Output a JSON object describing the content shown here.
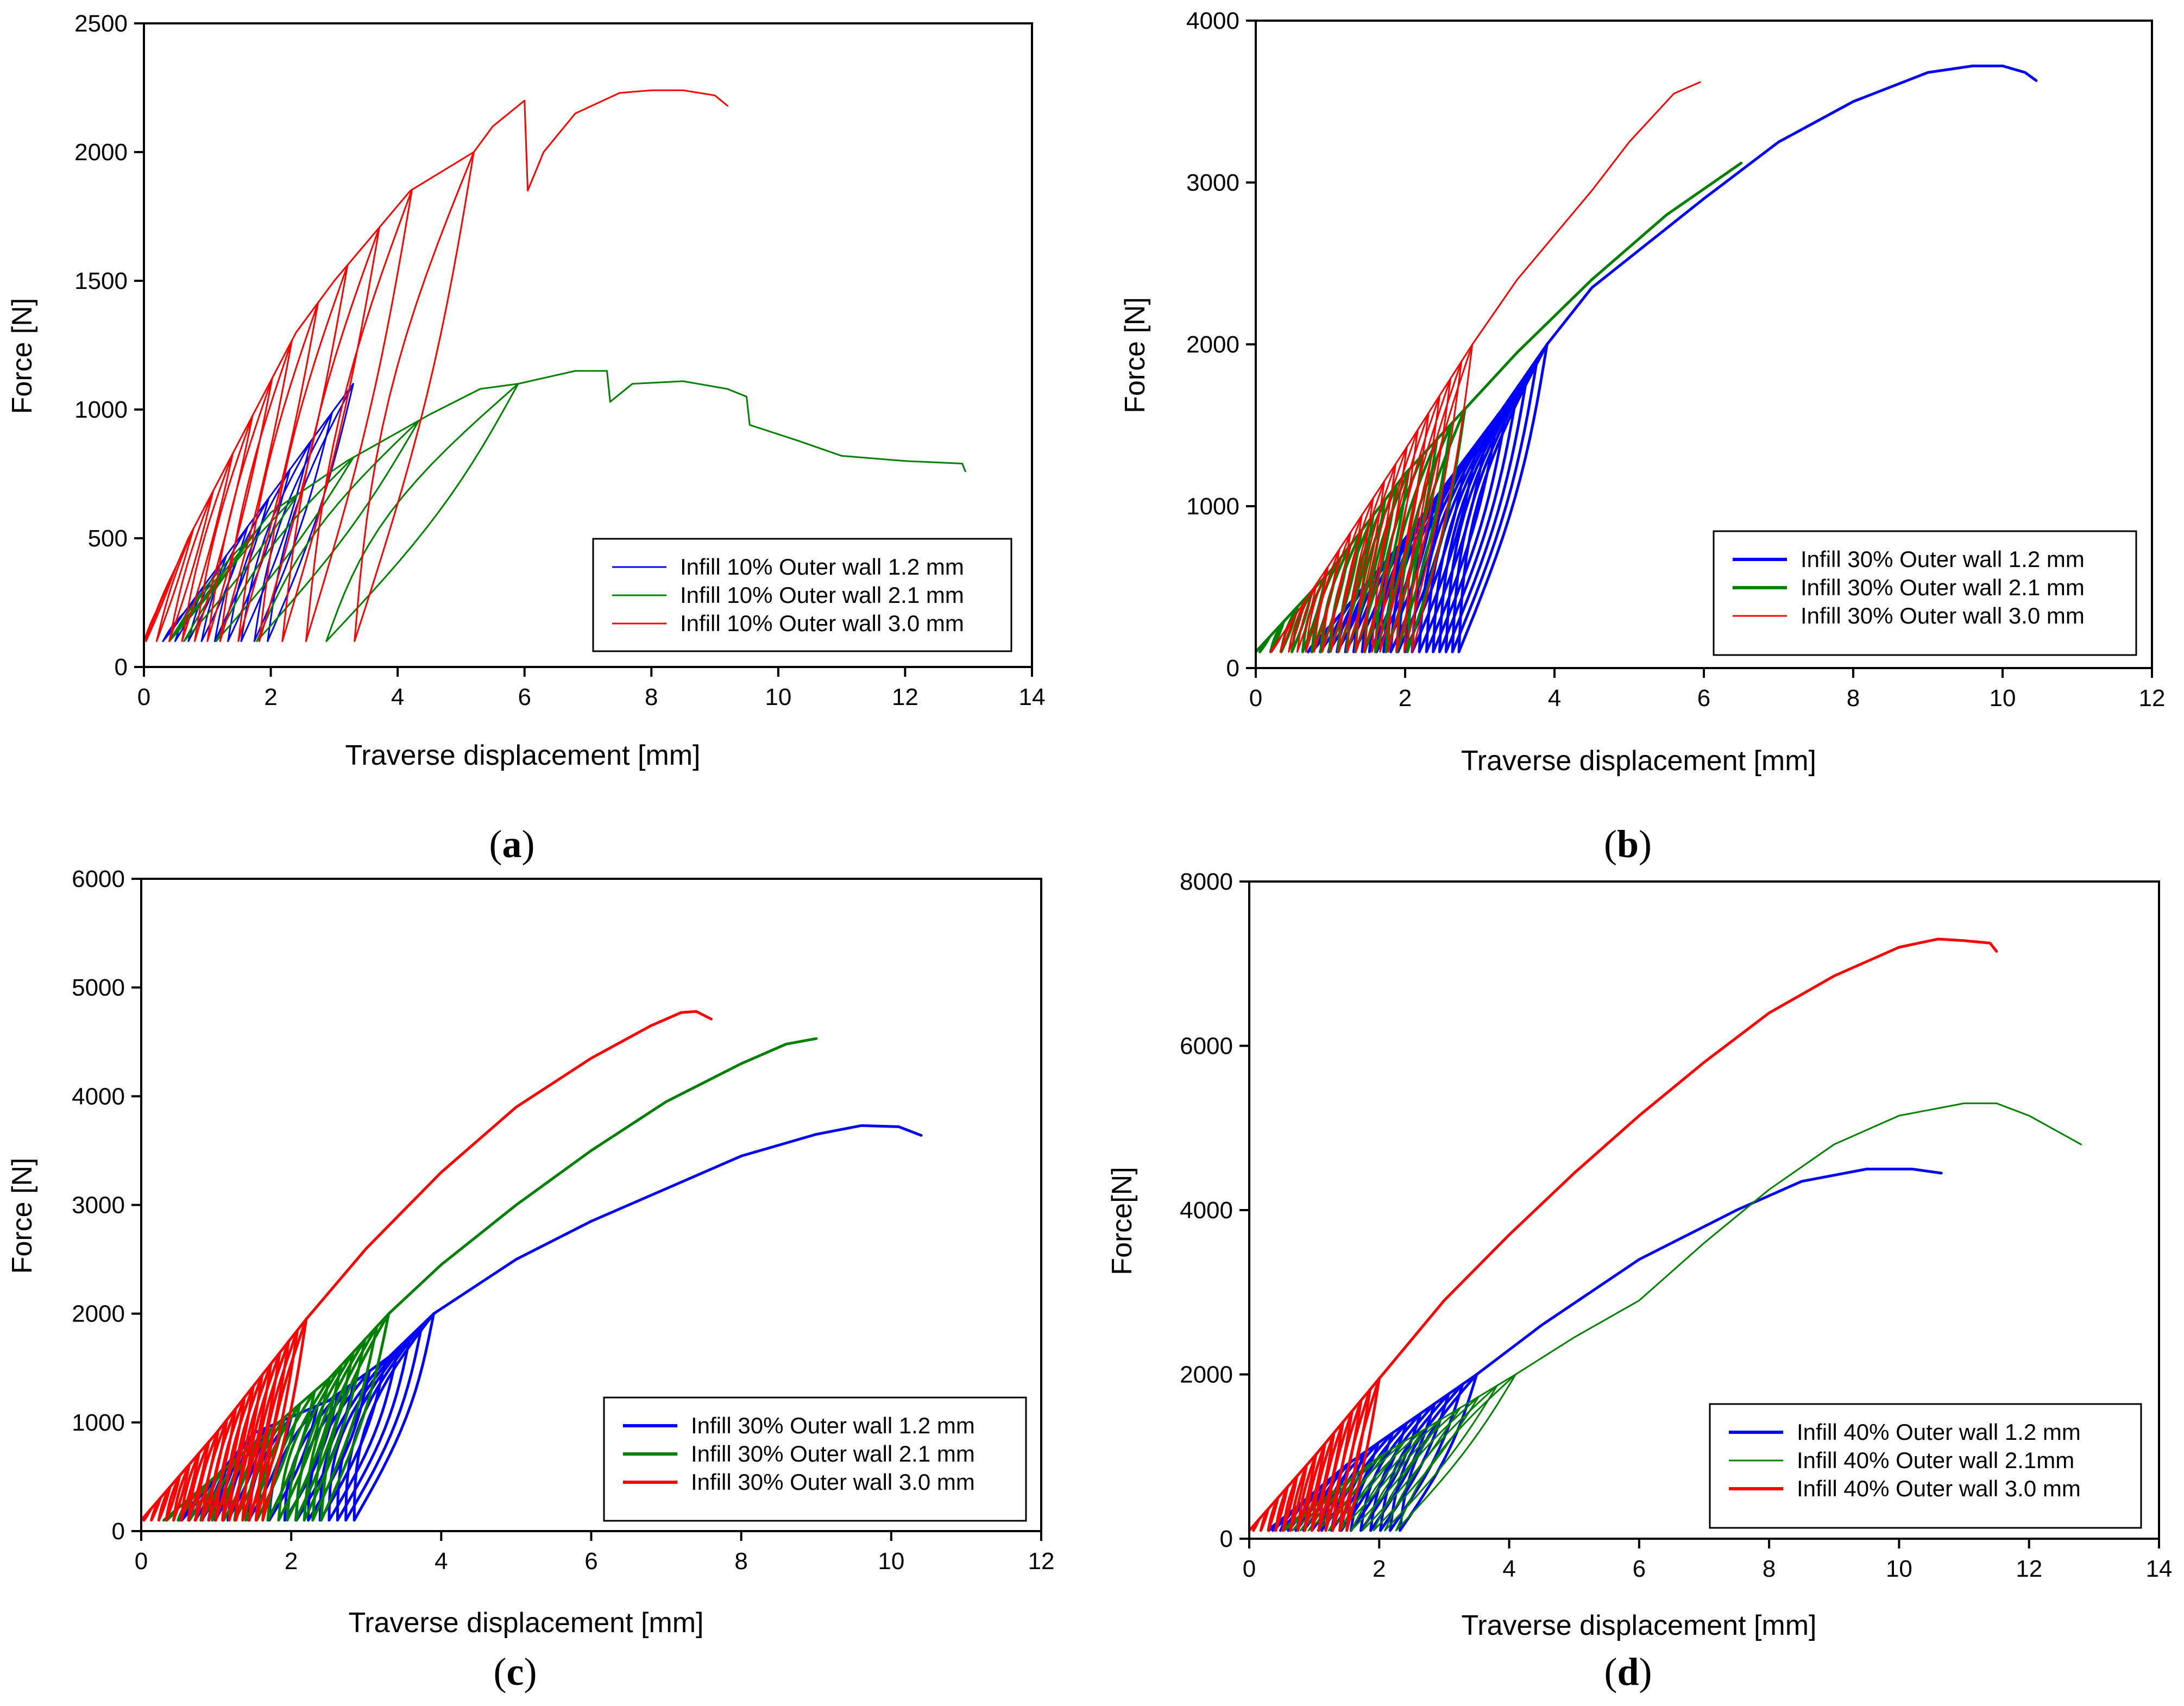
{
  "chart_data": [
    {
      "panel": "(a)",
      "type": "line",
      "title": "",
      "xlabel": "Traverse displacement [mm]",
      "ylabel": "Force [N]",
      "xlim": [
        0,
        14
      ],
      "ylim": [
        0,
        2500
      ],
      "xticks": [
        0,
        2,
        4,
        6,
        8,
        10,
        12,
        14
      ],
      "yticks": [
        0,
        500,
        1000,
        1500,
        2000,
        2500
      ],
      "legend_placement": "bottom-right",
      "grid": false,
      "series": [
        {
          "name": "Infill 10% Outer wall 1.2 mm",
          "color": "#0000ff",
          "thick": false,
          "envelope": [
            [
              0.3,
              100
            ],
            [
              3.3,
              1100
            ]
          ],
          "cycles": {
            "count": 9,
            "x_shift": 0.9,
            "curvature": 0.12
          },
          "tail": [],
          "lower_end": [
            1.2,
            100
          ]
        },
        {
          "name": "Infill 10% Outer wall 2.1 mm",
          "color": "#008000",
          "thick": false,
          "envelope": [
            [
              0.4,
              100
            ],
            [
              2.0,
              600
            ],
            [
              3.2,
              800
            ],
            [
              4.5,
              980
            ],
            [
              5.3,
              1080
            ],
            [
              5.9,
              1100
            ]
          ],
          "cycles": {
            "count": 7,
            "x_shift": 2.2,
            "curvature": 0.12
          },
          "tail": [
            [
              5.9,
              1100
            ],
            [
              6.8,
              1150
            ],
            [
              7.3,
              1150
            ],
            [
              7.35,
              1030
            ],
            [
              7.7,
              1100
            ],
            [
              8.5,
              1110
            ],
            [
              9.2,
              1080
            ],
            [
              9.5,
              1050
            ],
            [
              9.55,
              940
            ],
            [
              10.3,
              880
            ],
            [
              11.0,
              820
            ],
            [
              12.0,
              800
            ],
            [
              12.9,
              790
            ],
            [
              12.95,
              760
            ]
          ],
          "lower_end": [
            1.7,
            100
          ]
        },
        {
          "name": "Infill 10% Outer wall 3.0 mm",
          "color": "#ff0000",
          "thick": false,
          "envelope": [
            [
              0.0,
              100
            ],
            [
              0.7,
              500
            ],
            [
              2.4,
              1300
            ],
            [
              3.0,
              1500
            ],
            [
              4.2,
              1850
            ],
            [
              5.2,
              2000
            ]
          ],
          "cycles": {
            "count": 13,
            "x_shift": 1.1,
            "curvature": 0.1
          },
          "tail": [
            [
              5.2,
              2000
            ],
            [
              5.5,
              2100
            ],
            [
              6.0,
              2200
            ],
            [
              6.05,
              1850
            ],
            [
              6.3,
              2000
            ],
            [
              6.8,
              2150
            ],
            [
              7.5,
              2230
            ],
            [
              8.0,
              2240
            ],
            [
              8.5,
              2240
            ],
            [
              9.0,
              2220
            ],
            [
              9.2,
              2180
            ]
          ],
          "lower_end": [
            1.3,
            100
          ]
        }
      ]
    },
    {
      "panel": "(b)",
      "type": "line",
      "title": "",
      "xlabel": "Traverse displacement [mm]",
      "ylabel": "Force [N]",
      "xlim": [
        0,
        12
      ],
      "ylim": [
        0,
        4000
      ],
      "xticks": [
        0,
        2,
        4,
        6,
        8,
        10,
        12
      ],
      "yticks": [
        0,
        1000,
        2000,
        3000,
        4000
      ],
      "legend_placement": "bottom-right",
      "grid": false,
      "series": [
        {
          "name": "Infill 30% Outer wall 1.2 mm",
          "color": "#0000ff",
          "thick": true,
          "envelope": [
            [
              0.7,
              100
            ],
            [
              2.0,
              800
            ],
            [
              3.3,
              1600
            ],
            [
              3.9,
              2000
            ]
          ],
          "cycles": {
            "count": 22,
            "x_shift": 0.7,
            "curvature": 0.1
          },
          "tail": [
            [
              3.9,
              2000
            ],
            [
              4.5,
              2350
            ],
            [
              6.0,
              2900
            ],
            [
              7.0,
              3250
            ],
            [
              8.0,
              3500
            ],
            [
              9.0,
              3680
            ],
            [
              9.6,
              3720
            ],
            [
              10.0,
              3720
            ],
            [
              10.3,
              3680
            ],
            [
              10.45,
              3630
            ]
          ],
          "lower_end": [
            0.7,
            100
          ]
        },
        {
          "name": "Infill 30% Outer wall 2.1 mm",
          "color": "#008000",
          "thick": true,
          "envelope": [
            [
              0.0,
              100
            ],
            [
              1.0,
              600
            ],
            [
              2.0,
              1200
            ],
            [
              2.8,
              1600
            ]
          ],
          "cycles": {
            "count": 16,
            "x_shift": 0.35,
            "curvature": 0.08
          },
          "tail": [
            [
              2.8,
              1600
            ],
            [
              3.5,
              1950
            ],
            [
              4.5,
              2400
            ],
            [
              5.5,
              2800
            ],
            [
              6.5,
              3120
            ]
          ],
          "lower_end": [
            0.45,
            100
          ]
        },
        {
          "name": "Infill 30% Outer wall 3.0 mm",
          "color": "#ff0000",
          "thick": false,
          "envelope": [
            [
              0.2,
              100
            ],
            [
              1.0,
              650
            ],
            [
              2.0,
              1350
            ],
            [
              2.9,
              2000
            ]
          ],
          "cycles": {
            "count": 18,
            "x_shift": 0.4,
            "curvature": 0.08
          },
          "tail": [
            [
              2.9,
              2000
            ],
            [
              3.5,
              2400
            ],
            [
              4.5,
              2950
            ],
            [
              5.0,
              3250
            ],
            [
              5.6,
              3550
            ],
            [
              5.95,
              3620
            ]
          ],
          "lower_end": [
            0.6,
            100
          ]
        }
      ]
    },
    {
      "panel": "(c)",
      "type": "line",
      "title": "",
      "xlabel": "Traverse displacement [mm]",
      "ylabel": "Force [N]",
      "xlim": [
        0,
        12
      ],
      "ylim": [
        0,
        6000
      ],
      "xticks": [
        0,
        2,
        4,
        6,
        8,
        10,
        12
      ],
      "yticks": [
        0,
        1000,
        2000,
        3000,
        4000,
        5000,
        6000
      ],
      "legend_placement": "bottom-right",
      "grid": false,
      "series": [
        {
          "name": "Infill 30% Outer wall 1.2 mm",
          "color": "#0000ff",
          "thick": true,
          "envelope": [
            [
              0.5,
              100
            ],
            [
              1.5,
              900
            ],
            [
              2.5,
              1200
            ],
            [
              3.3,
              1600
            ],
            [
              3.9,
              2000
            ]
          ],
          "cycles": {
            "count": 18,
            "x_shift": 0.55,
            "curvature": 0.1
          },
          "tail": [
            [
              3.9,
              2000
            ],
            [
              5.0,
              2500
            ],
            [
              6.0,
              2850
            ],
            [
              7.0,
              3150
            ],
            [
              8.0,
              3450
            ],
            [
              9.0,
              3650
            ],
            [
              9.6,
              3730
            ],
            [
              10.1,
              3720
            ],
            [
              10.4,
              3640
            ]
          ],
          "lower_end": [
            0.6,
            100
          ]
        },
        {
          "name": "Infill 30% Outer wall 2.1 mm",
          "color": "#008000",
          "thick": true,
          "envelope": [
            [
              0.3,
              100
            ],
            [
              1.5,
              800
            ],
            [
              2.5,
              1400
            ],
            [
              3.3,
              2000
            ]
          ],
          "cycles": {
            "count": 16,
            "x_shift": 0.45,
            "curvature": 0.08
          },
          "tail": [
            [
              3.3,
              2000
            ],
            [
              4.0,
              2450
            ],
            [
              5.0,
              3000
            ],
            [
              6.0,
              3500
            ],
            [
              7.0,
              3950
            ],
            [
              8.0,
              4300
            ],
            [
              8.6,
              4480
            ],
            [
              9.0,
              4530
            ]
          ],
          "lower_end": [
            0.55,
            100
          ]
        },
        {
          "name": "Infill 30% Outer wall 3.0 mm",
          "color": "#ff0000",
          "thick": true,
          "envelope": [
            [
              0.0,
              100
            ],
            [
              1.0,
              900
            ],
            [
              2.2,
              1950
            ]
          ],
          "cycles": {
            "count": 18,
            "x_shift": 0.25,
            "curvature": 0.06
          },
          "tail": [
            [
              2.2,
              1950
            ],
            [
              3.0,
              2600
            ],
            [
              4.0,
              3300
            ],
            [
              5.0,
              3900
            ],
            [
              6.0,
              4350
            ],
            [
              6.8,
              4650
            ],
            [
              7.2,
              4770
            ],
            [
              7.4,
              4780
            ],
            [
              7.6,
              4710
            ]
          ],
          "lower_end": [
            0.3,
            100
          ]
        }
      ]
    },
    {
      "panel": "(d)",
      "type": "line",
      "title": "",
      "xlabel": "Traverse displacement [mm]",
      "ylabel": "Force[N]",
      "xlim": [
        0,
        14
      ],
      "ylim": [
        0,
        8000
      ],
      "xticks": [
        0,
        2,
        4,
        6,
        8,
        10,
        12,
        14
      ],
      "yticks": [
        0,
        2000,
        4000,
        6000,
        8000
      ],
      "legend_placement": "bottom-right",
      "grid": false,
      "series": [
        {
          "name": "Infill 40% Outer wall 1.2 mm",
          "color": "#0000ff",
          "thick": true,
          "envelope": [
            [
              0.3,
              100
            ],
            [
              1.5,
              900
            ],
            [
              3.5,
              2000
            ]
          ],
          "cycles": {
            "count": 16,
            "x_shift": 0.7,
            "curvature": 0.1
          },
          "tail": [
            [
              3.5,
              2000
            ],
            [
              4.5,
              2600
            ],
            [
              6.0,
              3400
            ],
            [
              7.5,
              4000
            ],
            [
              8.5,
              4350
            ],
            [
              9.5,
              4500
            ],
            [
              10.2,
              4500
            ],
            [
              10.65,
              4450
            ]
          ],
          "lower_end": [
            0.6,
            100
          ]
        },
        {
          "name": "Infill 40% Outer wall 2.1mm",
          "color": "#008000",
          "thick": false,
          "envelope": [
            [
              0.5,
              100
            ],
            [
              2.0,
              1000
            ],
            [
              4.1,
              2000
            ]
          ],
          "cycles": {
            "count": 14,
            "x_shift": 1.3,
            "curvature": 0.1
          },
          "tail": [
            [
              4.1,
              2000
            ],
            [
              5.0,
              2450
            ],
            [
              6.0,
              2900
            ],
            [
              7.0,
              3600
            ],
            [
              8.0,
              4250
            ],
            [
              9.0,
              4800
            ],
            [
              10.0,
              5150
            ],
            [
              11.0,
              5300
            ],
            [
              11.5,
              5300
            ],
            [
              12.0,
              5150
            ],
            [
              12.8,
              4800
            ]
          ],
          "lower_end": [
            1.6,
            100
          ]
        },
        {
          "name": "Infill 40% Outer wall 3.0 mm",
          "color": "#ff0000",
          "thick": true,
          "envelope": [
            [
              0.0,
              100
            ],
            [
              1.0,
              1000
            ],
            [
              2.0,
              1950
            ]
          ],
          "cycles": {
            "count": 14,
            "x_shift": 0.2,
            "curvature": 0.05
          },
          "tail": [
            [
              2.0,
              1950
            ],
            [
              3.0,
              2900
            ],
            [
              4.0,
              3700
            ],
            [
              5.0,
              4450
            ],
            [
              6.0,
              5150
            ],
            [
              7.0,
              5800
            ],
            [
              8.0,
              6400
            ],
            [
              9.0,
              6850
            ],
            [
              10.0,
              7200
            ],
            [
              10.6,
              7300
            ],
            [
              11.0,
              7280
            ],
            [
              11.4,
              7250
            ],
            [
              11.5,
              7150
            ]
          ],
          "lower_end": [
            0.35,
            100
          ]
        }
      ]
    }
  ]
}
